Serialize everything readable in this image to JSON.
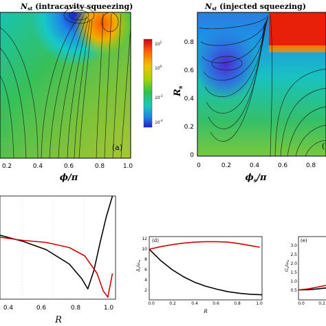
{
  "panel_a": {
    "title": "N",
    "title_sub": "st",
    "title_rest": " (intracavity squeezing)",
    "label": "(a)",
    "xlabel": "ϕ/π",
    "xticks": [
      "0.2",
      "0.4",
      "0.6",
      "0.8",
      "1.0"
    ]
  },
  "colorbar": {
    "ticks": [
      "10",
      "10",
      "10",
      "10"
    ],
    "tick_exps": [
      "2",
      "0",
      "-2",
      "-4"
    ],
    "colors": [
      "#d4001e",
      "#ff6a00",
      "#f2c200",
      "#a8d400",
      "#2fc24a",
      "#18c9b8",
      "#1e88e5",
      "#2020d0"
    ]
  },
  "panel_b": {
    "title": "N",
    "title_sub": "st",
    "title_rest": " (injected squeezing)",
    "label": "(",
    "xlabel": "ϕ",
    "xlabel_sub": "s",
    "xlabel_rest": "/π",
    "ylabel": "R",
    "ylabel_sub": "s",
    "xticks": [
      "0",
      "0.2",
      "0.4",
      "0.6",
      "0.8"
    ],
    "yticks": [
      "0.8",
      "0.6",
      "0.4",
      "0.2",
      "0"
    ]
  },
  "panel_c_partial": {
    "xlabel": "R",
    "xticks": [
      "0.4",
      "0.6",
      "0.8",
      "1.0"
    ]
  },
  "panel_d": {
    "label": "(d)",
    "ylabel": "Δ",
    "ylabel_sub": "s",
    "ylabel_rest": "/ω",
    "ylabel_sub2": "m",
    "xlabel": "R",
    "xticks": [
      "0.0",
      "0.2",
      "0.4",
      "0.6",
      "0.8",
      "1.0"
    ],
    "yticks": [
      "12",
      "10",
      "8",
      "6",
      "4",
      "2"
    ]
  },
  "panel_e": {
    "label": "(e)",
    "ylabel": "G",
    "ylabel_sub": "s",
    "ylabel_rest": "/ω",
    "ylabel_sub2": "m",
    "xticks": [
      "0.0",
      "0.2"
    ],
    "yticks": [
      "3.0",
      "2.5",
      "2.0",
      "1.5",
      "1.0",
      "0.5"
    ]
  },
  "chart_data": [
    {
      "type": "heatmap",
      "title": "Nst (intracavity squeezing)",
      "xlabel": "ϕ/π",
      "xlim": [
        0.0,
        1.0
      ]
    },
    {
      "type": "heatmap",
      "title": "Nst (injected squeezing)",
      "xlabel": "ϕs/π",
      "ylabel": "Rs",
      "xlim": [
        0.0,
        1.0
      ],
      "ylim": [
        0.0,
        1.0
      ]
    },
    {
      "type": "line",
      "xlabel": "R",
      "xlim": [
        0.25,
        1.0
      ],
      "series": [
        {
          "color": "#000000",
          "x": [
            0.25,
            0.4,
            0.55,
            0.7,
            0.78,
            0.82,
            0.86,
            0.9,
            0.94,
            0.98
          ],
          "y": [
            0.62,
            0.56,
            0.48,
            0.34,
            0.2,
            0.1,
            0.28,
            0.55,
            0.8,
            1.0
          ]
        },
        {
          "color": "#d00000",
          "x": [
            0.25,
            0.4,
            0.55,
            0.7,
            0.8,
            0.88,
            0.92,
            0.95,
            0.98
          ],
          "y": [
            0.6,
            0.57,
            0.55,
            0.5,
            0.42,
            0.25,
            0.08,
            0.02,
            0.25
          ]
        }
      ]
    },
    {
      "type": "line",
      "xlabel": "R",
      "ylabel": "Δs/ωm",
      "xlim": [
        0.0,
        1.0
      ],
      "ylim": [
        0,
        12
      ],
      "series": [
        {
          "color": "#000000",
          "x": [
            0.0,
            0.1,
            0.2,
            0.3,
            0.4,
            0.5,
            0.6,
            0.7,
            0.8,
            0.9,
            1.0
          ],
          "y": [
            10.0,
            7.8,
            6.0,
            4.6,
            3.5,
            2.7,
            2.1,
            1.6,
            1.3,
            1.1,
            1.0
          ]
        },
        {
          "color": "#d00000",
          "x": [
            0.0,
            0.1,
            0.2,
            0.3,
            0.4,
            0.5,
            0.6,
            0.7,
            0.8,
            0.9,
            0.98
          ],
          "y": [
            10.0,
            10.5,
            10.9,
            11.2,
            11.4,
            11.5,
            11.5,
            11.4,
            11.1,
            10.7,
            10.4
          ]
        }
      ]
    },
    {
      "type": "line",
      "ylabel": "Gs/ωm",
      "ylim": [
        0.0,
        3.5
      ],
      "series": [
        {
          "color": "#000000",
          "x": [
            0.0,
            0.1,
            0.2,
            0.3
          ],
          "y": [
            0.55,
            0.56,
            0.6,
            0.66
          ]
        },
        {
          "color": "#d00000",
          "x": [
            0.0,
            0.1,
            0.2,
            0.3
          ],
          "y": [
            0.55,
            0.6,
            0.7,
            0.8
          ]
        }
      ]
    }
  ]
}
